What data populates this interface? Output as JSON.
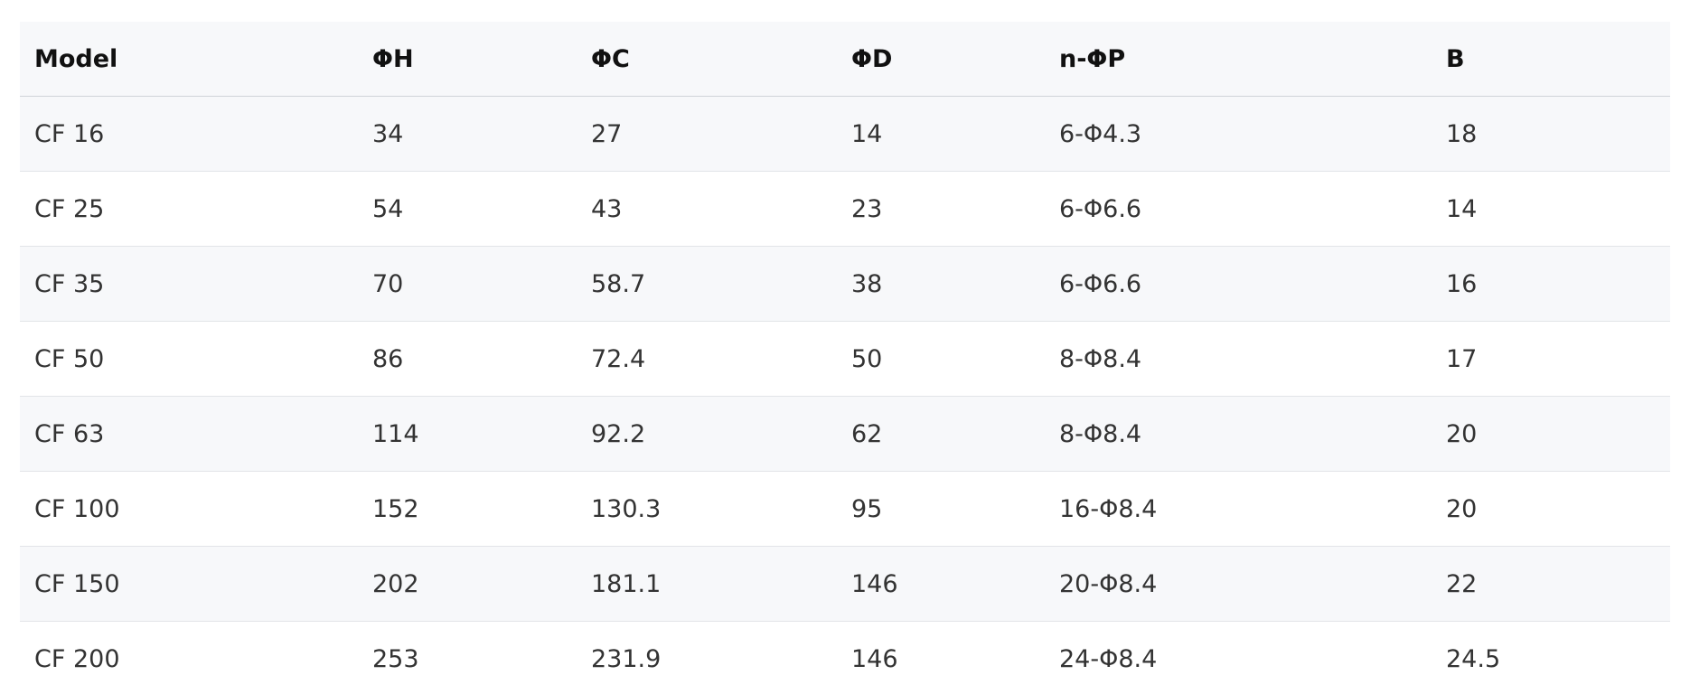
{
  "table": {
    "headers": [
      "Model",
      "ΦH",
      "ΦC",
      "ΦD",
      "n-ΦP",
      "B"
    ],
    "rows": [
      [
        "CF 16",
        "34",
        "27",
        "14",
        "6-Φ4.3",
        "18"
      ],
      [
        "CF 25",
        "54",
        "43",
        "23",
        "6-Φ6.6",
        "14"
      ],
      [
        "CF 35",
        "70",
        "58.7",
        "38",
        "6-Φ6.6",
        "16"
      ],
      [
        "CF 50",
        "86",
        "72.4",
        "50",
        "8-Φ8.4",
        "17"
      ],
      [
        "CF 63",
        "114",
        "92.2",
        "62",
        "8-Φ8.4",
        "20"
      ],
      [
        "CF 100",
        "152",
        "130.3",
        "95",
        "16-Φ8.4",
        "20"
      ],
      [
        "CF 150",
        "202",
        "181.1",
        "146",
        "20-Φ8.4",
        "22"
      ],
      [
        "CF 200",
        "253",
        "231.9",
        "146",
        "24-Φ8.4",
        "24.5"
      ]
    ]
  }
}
